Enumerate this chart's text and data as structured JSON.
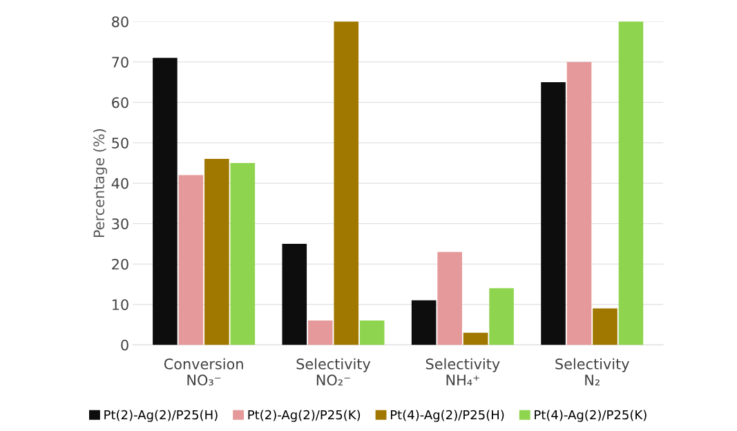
{
  "chart_data": {
    "type": "bar",
    "ylabel": "Percentage (%)",
    "categories": [
      "Conversion\nNO₃⁻",
      "Selectivity\nNO₂⁻",
      "Selectivity\nNH₄⁺",
      "Selectivity\nN₂"
    ],
    "series": [
      {
        "name": "Pt(2)-Ag(2)/P25(H)",
        "color": "#0d0d0d",
        "values": [
          71,
          25,
          11,
          65
        ]
      },
      {
        "name": "Pt(2)-Ag(2)/P25(K)",
        "color": "#e6999a",
        "values": [
          42,
          6,
          23,
          70
        ]
      },
      {
        "name": "Pt(4)-Ag(2)/P25(H)",
        "color": "#a07800",
        "values": [
          46,
          80,
          3,
          9
        ]
      },
      {
        "name": "Pt(4)-Ag(2)/P25(K)",
        "color": "#8fd44f",
        "values": [
          45,
          6,
          14,
          80
        ]
      }
    ],
    "ylim": [
      0,
      80
    ],
    "yticks": [
      0,
      10,
      20,
      30,
      40,
      50,
      60,
      70,
      80
    ],
    "grid": "y",
    "legend": "bottom"
  }
}
